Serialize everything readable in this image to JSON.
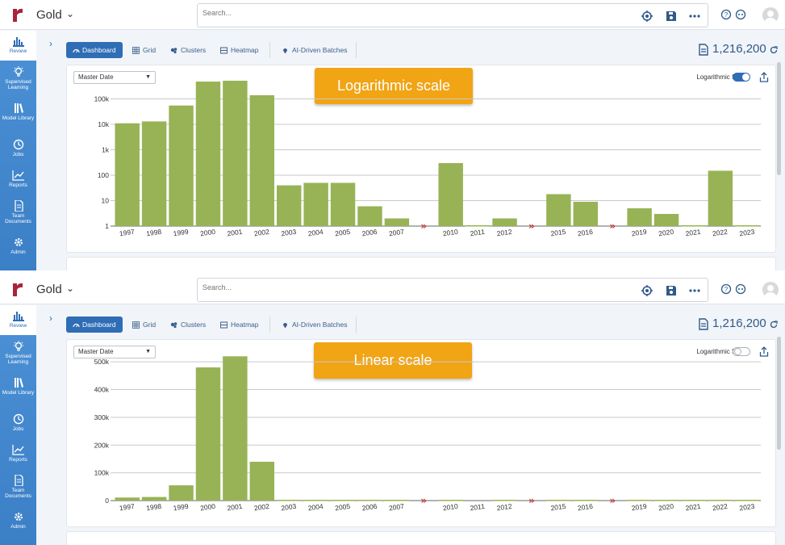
{
  "panels": [
    {
      "app_title": "Gold",
      "search_placeholder": "Search...",
      "sidebar": [
        {
          "label": "Review",
          "icon": "bar-chart-icon"
        },
        {
          "label": "Supervised Learning",
          "icon": "lightbulb-icon"
        },
        {
          "label": "Model Library",
          "icon": "books-icon"
        },
        {
          "label": "Jobs",
          "icon": "clock-icon"
        },
        {
          "label": "Reports",
          "icon": "line-chart-icon"
        },
        {
          "label": "Team Documents",
          "icon": "document-icon"
        },
        {
          "label": "Admin",
          "icon": "gear-icon"
        }
      ],
      "tabs": [
        {
          "label": "Dashboard",
          "icon": "gauge-icon",
          "active": true
        },
        {
          "label": "Grid",
          "icon": "grid-icon",
          "active": false
        },
        {
          "label": "Clusters",
          "icon": "clusters-icon",
          "active": false
        },
        {
          "label": "Heatmap",
          "icon": "heatmap-icon",
          "active": false
        },
        {
          "label": "AI-Driven Batches",
          "icon": "pin-icon",
          "active": false
        }
      ],
      "doc_count": "1,216,200",
      "date_select": "Master Date",
      "banner": "Logarithmic scale",
      "toggle_label": "Logarithmic Scale",
      "toggle_on": true,
      "chart_data": {
        "type": "bar",
        "scale": "log",
        "categories": [
          "1997",
          "1998",
          "1999",
          "2000",
          "2001",
          "2002",
          "2003",
          "2004",
          "2005",
          "2006",
          "2007",
          "2010",
          "2011",
          "2012",
          "2015",
          "2016",
          "2019",
          "2020",
          "2021",
          "2022",
          "2023"
        ],
        "values": [
          11000,
          13000,
          55000,
          480000,
          520000,
          140000,
          40,
          50,
          50,
          6,
          2,
          300,
          0,
          2,
          18,
          9,
          5,
          3,
          1,
          150,
          1
        ],
        "gaps_after": [
          "2007",
          "2012",
          "2016"
        ],
        "y_ticks": [
          "1",
          "10",
          "100",
          "1k",
          "10k",
          "100k"
        ],
        "ylim": [
          1,
          1000000
        ],
        "bar_color": "#97b356",
        "gap_marker_color": "#c0392b",
        "grid": true
      }
    },
    {
      "app_title": "Gold",
      "search_placeholder": "Search...",
      "sidebar": [
        {
          "label": "Review",
          "icon": "bar-chart-icon"
        },
        {
          "label": "Supervised Learning",
          "icon": "lightbulb-icon"
        },
        {
          "label": "Model Library",
          "icon": "books-icon"
        },
        {
          "label": "Jobs",
          "icon": "clock-icon"
        },
        {
          "label": "Reports",
          "icon": "line-chart-icon"
        },
        {
          "label": "Team Documents",
          "icon": "document-icon"
        },
        {
          "label": "Admin",
          "icon": "gear-icon"
        }
      ],
      "tabs": [
        {
          "label": "Dashboard",
          "icon": "gauge-icon",
          "active": true
        },
        {
          "label": "Grid",
          "icon": "grid-icon",
          "active": false
        },
        {
          "label": "Clusters",
          "icon": "clusters-icon",
          "active": false
        },
        {
          "label": "Heatmap",
          "icon": "heatmap-icon",
          "active": false
        },
        {
          "label": "AI-Driven Batches",
          "icon": "pin-icon",
          "active": false
        }
      ],
      "doc_count": "1,216,200",
      "date_select": "Master Date",
      "banner": "Linear scale",
      "toggle_label": "Logarithmic Scale",
      "toggle_on": false,
      "chart_data": {
        "type": "bar",
        "scale": "linear",
        "categories": [
          "1997",
          "1998",
          "1999",
          "2000",
          "2001",
          "2002",
          "2003",
          "2004",
          "2005",
          "2006",
          "2007",
          "2010",
          "2011",
          "2012",
          "2015",
          "2016",
          "2019",
          "2020",
          "2021",
          "2022",
          "2023"
        ],
        "values": [
          11000,
          13000,
          55000,
          480000,
          520000,
          140000,
          40,
          50,
          50,
          6,
          2,
          300,
          0,
          2,
          18,
          9,
          5,
          3,
          1,
          150,
          1
        ],
        "gaps_after": [
          "2007",
          "2012",
          "2016"
        ],
        "y_ticks": [
          "0",
          "100k",
          "200k",
          "300k",
          "400k",
          "500k"
        ],
        "ylim": [
          0,
          550000
        ],
        "bar_color": "#97b356",
        "gap_marker_color": "#c0392b",
        "grid": true
      }
    }
  ]
}
